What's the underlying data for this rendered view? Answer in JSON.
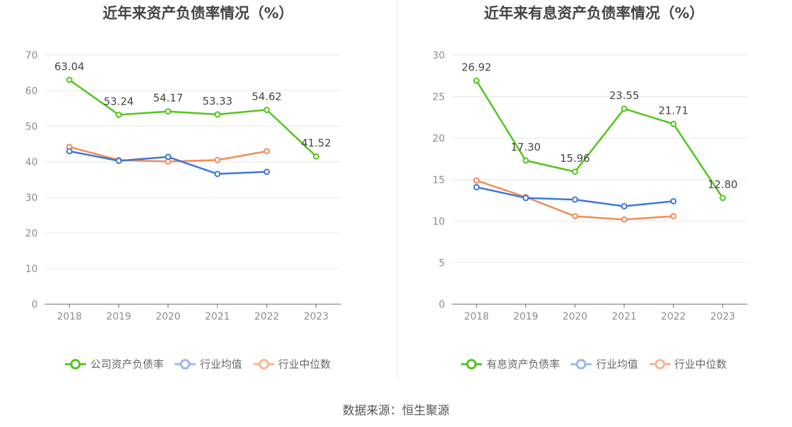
{
  "source": "数据来源：恒生聚源",
  "chart_data": [
    {
      "type": "line",
      "title": "近年来资产负债率情况（%）",
      "categories": [
        "2018",
        "2019",
        "2020",
        "2021",
        "2022",
        "2023"
      ],
      "ylim": [
        0,
        70
      ],
      "yticks": [
        0,
        10,
        20,
        30,
        40,
        50,
        60,
        70
      ],
      "grid": true,
      "legend_position": "bottom",
      "series": [
        {
          "name": "公司资产负债率",
          "color": "#52c41a",
          "values": [
            63.04,
            53.24,
            54.17,
            53.33,
            54.62,
            41.52
          ],
          "labels": [
            "63.04",
            "53.24",
            "54.17",
            "53.33",
            "54.62",
            "41.52"
          ]
        },
        {
          "name": "行业均值",
          "color": "#3a75dc",
          "values": [
            43.0,
            40.3,
            41.4,
            36.6,
            37.2,
            null
          ]
        },
        {
          "name": "行业中位数",
          "color": "#f28a52",
          "values": [
            44.2,
            40.5,
            40.1,
            40.5,
            43.0,
            null
          ]
        }
      ]
    },
    {
      "type": "line",
      "title": "近年来有息资产负债率情况（%）",
      "categories": [
        "2018",
        "2019",
        "2020",
        "2021",
        "2022",
        "2023"
      ],
      "ylim": [
        0,
        30
      ],
      "yticks": [
        0,
        5,
        10,
        15,
        20,
        25,
        30
      ],
      "grid": true,
      "legend_position": "bottom",
      "series": [
        {
          "name": "有息资产负债率",
          "color": "#52c41a",
          "values": [
            26.92,
            17.3,
            15.96,
            23.55,
            21.71,
            12.8
          ],
          "labels": [
            "26.92",
            "17.30",
            "15.96",
            "23.55",
            "21.71",
            "12.80"
          ]
        },
        {
          "name": "行业均值",
          "color": "#3a75dc",
          "values": [
            14.1,
            12.8,
            12.6,
            11.8,
            12.4,
            null
          ]
        },
        {
          "name": "行业中位数",
          "color": "#f28a52",
          "values": [
            14.9,
            12.9,
            10.6,
            10.2,
            10.6,
            null
          ]
        }
      ]
    }
  ]
}
